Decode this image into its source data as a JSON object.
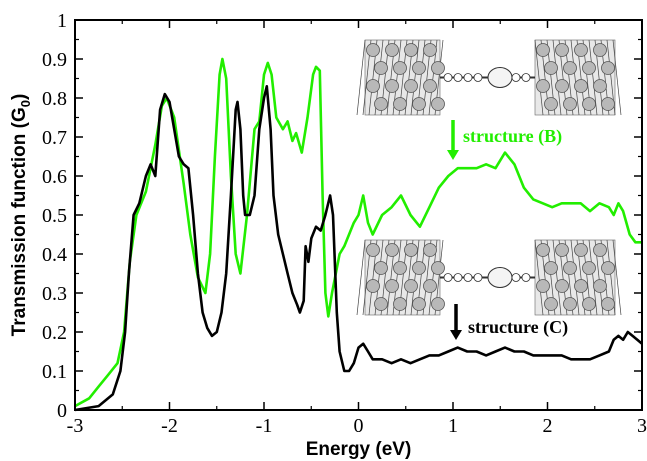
{
  "chart_data": {
    "type": "line",
    "xlabel": "Energy (eV)",
    "ylabel": "Transmission function (G",
    "ylabel_sub": "0",
    "ylabel_close": ")",
    "xlim": [
      -3,
      3
    ],
    "ylim": [
      0,
      1
    ],
    "xticks": [
      -3,
      -2,
      -1,
      0,
      1,
      2,
      3
    ],
    "yticks": [
      0,
      0.1,
      0.2,
      0.3,
      0.4,
      0.5,
      0.6,
      0.7,
      0.8,
      0.9,
      1
    ],
    "ytick_labels": [
      "0",
      "0.1",
      "0.2",
      "0.3",
      "0.4",
      "0.5",
      "0.6",
      "0.7",
      "0.8",
      "0.9",
      "1"
    ],
    "grid": false,
    "series": [
      {
        "color": "#22ee00",
        "points": [
          [
            -3.0,
            0.01
          ],
          [
            -2.85,
            0.03
          ],
          [
            -2.75,
            0.06
          ],
          [
            -2.65,
            0.09
          ],
          [
            -2.55,
            0.12
          ],
          [
            -2.48,
            0.2
          ],
          [
            -2.42,
            0.38
          ],
          [
            -2.35,
            0.5
          ],
          [
            -2.25,
            0.56
          ],
          [
            -2.15,
            0.68
          ],
          [
            -2.08,
            0.78
          ],
          [
            -2.03,
            0.8
          ],
          [
            -1.95,
            0.75
          ],
          [
            -1.85,
            0.58
          ],
          [
            -1.78,
            0.45
          ],
          [
            -1.7,
            0.34
          ],
          [
            -1.62,
            0.3
          ],
          [
            -1.57,
            0.4
          ],
          [
            -1.52,
            0.65
          ],
          [
            -1.47,
            0.86
          ],
          [
            -1.44,
            0.9
          ],
          [
            -1.4,
            0.85
          ],
          [
            -1.35,
            0.6
          ],
          [
            -1.3,
            0.4
          ],
          [
            -1.25,
            0.35
          ],
          [
            -1.18,
            0.5
          ],
          [
            -1.1,
            0.72
          ],
          [
            -1.05,
            0.74
          ],
          [
            -1.0,
            0.86
          ],
          [
            -0.96,
            0.89
          ],
          [
            -0.92,
            0.86
          ],
          [
            -0.87,
            0.75
          ],
          [
            -0.8,
            0.72
          ],
          [
            -0.75,
            0.74
          ],
          [
            -0.7,
            0.69
          ],
          [
            -0.66,
            0.71
          ],
          [
            -0.6,
            0.66
          ],
          [
            -0.54,
            0.75
          ],
          [
            -0.48,
            0.86
          ],
          [
            -0.45,
            0.88
          ],
          [
            -0.41,
            0.87
          ],
          [
            -0.38,
            0.55
          ],
          [
            -0.35,
            0.3
          ],
          [
            -0.32,
            0.24
          ],
          [
            -0.28,
            0.3
          ],
          [
            -0.2,
            0.4
          ],
          [
            -0.15,
            0.42
          ],
          [
            -0.05,
            0.48
          ],
          [
            0.0,
            0.5
          ],
          [
            0.05,
            0.55
          ],
          [
            0.1,
            0.48
          ],
          [
            0.15,
            0.45
          ],
          [
            0.25,
            0.5
          ],
          [
            0.35,
            0.52
          ],
          [
            0.45,
            0.55
          ],
          [
            0.55,
            0.5
          ],
          [
            0.65,
            0.47
          ],
          [
            0.75,
            0.52
          ],
          [
            0.85,
            0.57
          ],
          [
            0.95,
            0.6
          ],
          [
            1.05,
            0.62
          ],
          [
            1.15,
            0.62
          ],
          [
            1.25,
            0.62
          ],
          [
            1.35,
            0.63
          ],
          [
            1.45,
            0.62
          ],
          [
            1.55,
            0.66
          ],
          [
            1.65,
            0.63
          ],
          [
            1.75,
            0.57
          ],
          [
            1.85,
            0.54
          ],
          [
            1.95,
            0.53
          ],
          [
            2.05,
            0.52
          ],
          [
            2.15,
            0.53
          ],
          [
            2.25,
            0.53
          ],
          [
            2.35,
            0.53
          ],
          [
            2.45,
            0.51
          ],
          [
            2.55,
            0.53
          ],
          [
            2.65,
            0.52
          ],
          [
            2.7,
            0.5
          ],
          [
            2.75,
            0.53
          ],
          [
            2.8,
            0.51
          ],
          [
            2.87,
            0.45
          ],
          [
            2.93,
            0.43
          ],
          [
            3.0,
            0.43
          ]
        ]
      },
      {
        "color": "#000000",
        "points": [
          [
            -3.0,
            0.0
          ],
          [
            -2.75,
            0.01
          ],
          [
            -2.6,
            0.04
          ],
          [
            -2.52,
            0.1
          ],
          [
            -2.47,
            0.2
          ],
          [
            -2.43,
            0.35
          ],
          [
            -2.38,
            0.5
          ],
          [
            -2.32,
            0.53
          ],
          [
            -2.25,
            0.6
          ],
          [
            -2.2,
            0.63
          ],
          [
            -2.15,
            0.6
          ],
          [
            -2.1,
            0.77
          ],
          [
            -2.05,
            0.81
          ],
          [
            -2.0,
            0.79
          ],
          [
            -1.95,
            0.72
          ],
          [
            -1.9,
            0.65
          ],
          [
            -1.85,
            0.63
          ],
          [
            -1.8,
            0.62
          ],
          [
            -1.75,
            0.5
          ],
          [
            -1.7,
            0.35
          ],
          [
            -1.65,
            0.25
          ],
          [
            -1.6,
            0.21
          ],
          [
            -1.55,
            0.19
          ],
          [
            -1.5,
            0.2
          ],
          [
            -1.45,
            0.25
          ],
          [
            -1.4,
            0.35
          ],
          [
            -1.35,
            0.55
          ],
          [
            -1.3,
            0.77
          ],
          [
            -1.28,
            0.79
          ],
          [
            -1.25,
            0.72
          ],
          [
            -1.22,
            0.55
          ],
          [
            -1.2,
            0.5
          ],
          [
            -1.15,
            0.5
          ],
          [
            -1.1,
            0.55
          ],
          [
            -1.05,
            0.72
          ],
          [
            -1.0,
            0.8
          ],
          [
            -0.97,
            0.83
          ],
          [
            -0.93,
            0.72
          ],
          [
            -0.9,
            0.55
          ],
          [
            -0.85,
            0.45
          ],
          [
            -0.8,
            0.4
          ],
          [
            -0.75,
            0.35
          ],
          [
            -0.7,
            0.3
          ],
          [
            -0.65,
            0.27
          ],
          [
            -0.62,
            0.25
          ],
          [
            -0.58,
            0.28
          ],
          [
            -0.56,
            0.42
          ],
          [
            -0.53,
            0.38
          ],
          [
            -0.5,
            0.44
          ],
          [
            -0.45,
            0.47
          ],
          [
            -0.4,
            0.46
          ],
          [
            -0.35,
            0.5
          ],
          [
            -0.3,
            0.55
          ],
          [
            -0.27,
            0.5
          ],
          [
            -0.23,
            0.25
          ],
          [
            -0.2,
            0.15
          ],
          [
            -0.15,
            0.1
          ],
          [
            -0.1,
            0.1
          ],
          [
            -0.05,
            0.12
          ],
          [
            0.0,
            0.16
          ],
          [
            0.05,
            0.17
          ],
          [
            0.1,
            0.15
          ],
          [
            0.15,
            0.13
          ],
          [
            0.25,
            0.13
          ],
          [
            0.35,
            0.12
          ],
          [
            0.45,
            0.13
          ],
          [
            0.55,
            0.12
          ],
          [
            0.65,
            0.13
          ],
          [
            0.75,
            0.14
          ],
          [
            0.85,
            0.14
          ],
          [
            0.95,
            0.15
          ],
          [
            1.05,
            0.16
          ],
          [
            1.15,
            0.15
          ],
          [
            1.25,
            0.15
          ],
          [
            1.35,
            0.14
          ],
          [
            1.45,
            0.15
          ],
          [
            1.55,
            0.16
          ],
          [
            1.65,
            0.15
          ],
          [
            1.75,
            0.15
          ],
          [
            1.85,
            0.14
          ],
          [
            1.95,
            0.14
          ],
          [
            2.05,
            0.14
          ],
          [
            2.15,
            0.14
          ],
          [
            2.25,
            0.13
          ],
          [
            2.35,
            0.13
          ],
          [
            2.45,
            0.13
          ],
          [
            2.55,
            0.14
          ],
          [
            2.65,
            0.15
          ],
          [
            2.7,
            0.18
          ],
          [
            2.75,
            0.19
          ],
          [
            2.8,
            0.18
          ],
          [
            2.85,
            0.2
          ],
          [
            2.9,
            0.19
          ],
          [
            2.95,
            0.18
          ],
          [
            3.0,
            0.17
          ]
        ]
      }
    ],
    "annotations": [
      {
        "text": "structure (B)",
        "color": "#22ee00"
      },
      {
        "text": "structure (C)",
        "color": "#000000"
      }
    ]
  }
}
